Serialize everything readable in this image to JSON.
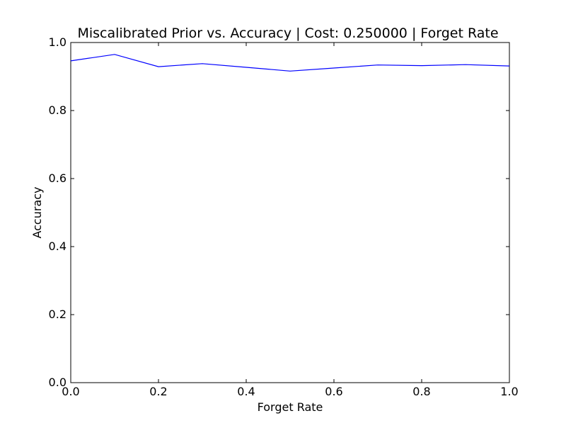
{
  "chart_data": {
    "type": "line",
    "title": "Miscalibrated Prior vs. Accuracy | Cost: 0.250000 | Forget Rate",
    "xlabel": "Forget Rate",
    "ylabel": "Accuracy",
    "xlim": [
      0.0,
      1.0
    ],
    "ylim": [
      0.0,
      1.0
    ],
    "x_ticks": [
      "0.0",
      "0.2",
      "0.4",
      "0.6",
      "0.8",
      "1.0"
    ],
    "y_ticks": [
      "0.0",
      "0.2",
      "0.4",
      "0.6",
      "0.8",
      "1.0"
    ],
    "grid": false,
    "series": [
      {
        "color": "#0000ff",
        "x": [
          0.0,
          0.1,
          0.2,
          0.3,
          0.4,
          0.5,
          0.6,
          0.7,
          0.8,
          0.9,
          1.0
        ],
        "y": [
          0.946,
          0.965,
          0.929,
          0.938,
          0.927,
          0.916,
          0.925,
          0.934,
          0.932,
          0.935,
          0.931
        ]
      }
    ]
  }
}
